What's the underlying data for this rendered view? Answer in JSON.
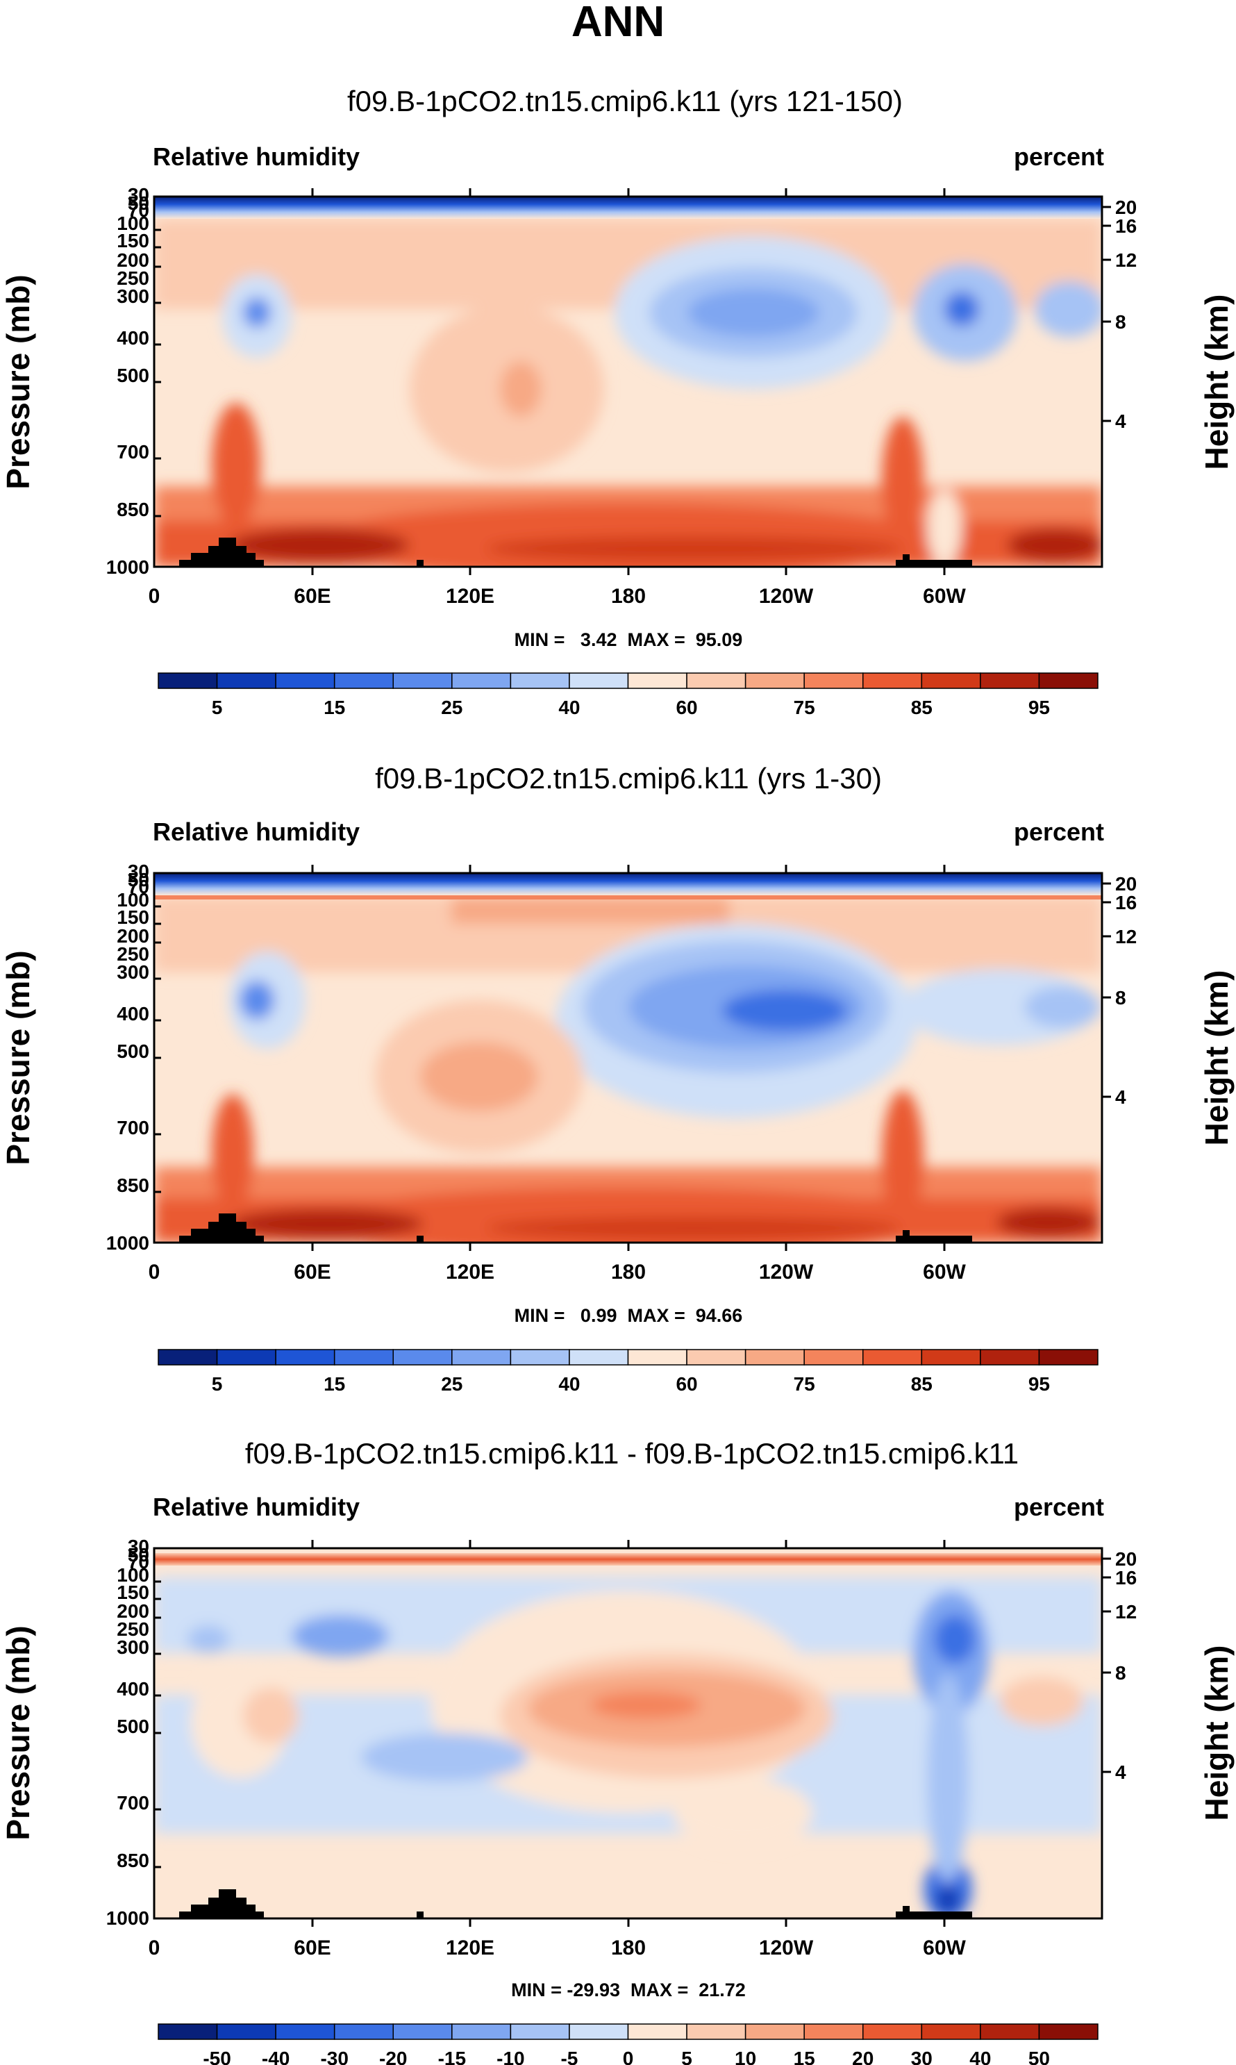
{
  "figure_title": "ANN",
  "chart_data": [
    {
      "type": "heatmap",
      "title": "f09.B-1pCO2.tn15.cmip6.k11 (yrs 121-150)",
      "left_label": "Relative humidity",
      "right_label": "percent",
      "xlabel": "",
      "ylabel": "Pressure (mb)",
      "ylabel_right": "Height (km)",
      "x_ticks": [
        "0",
        "60E",
        "120E",
        "180",
        "120W",
        "60W"
      ],
      "pressure_ticks": [
        "30",
        "50",
        "70",
        "100",
        "150",
        "200",
        "250",
        "300",
        "400",
        "500",
        "700",
        "850",
        "1000"
      ],
      "height_ticks": [
        "20",
        "16",
        "12",
        "8",
        "4"
      ],
      "stats_text": "MIN =   3.42  MAX =  95.09",
      "min": 3.42,
      "max": 95.09,
      "colorbar_levels": [
        5,
        10,
        15,
        20,
        25,
        30,
        40,
        50,
        60,
        70,
        75,
        80,
        85,
        90,
        95
      ],
      "colorbar_labels": [
        "5",
        "15",
        "25",
        "40",
        "60",
        "75",
        "85",
        "95"
      ],
      "colorbar_colors": [
        "#08207a",
        "#0d3ab5",
        "#1e55d6",
        "#3a6fe3",
        "#5a8aec",
        "#7fa6f1",
        "#a6c3f5",
        "#cfe0f8",
        "#fde7d5",
        "#fbcbb0",
        "#f7a985",
        "#f4845c",
        "#ea5a32",
        "#d13a18",
        "#b0220e",
        "#8a0f06"
      ]
    },
    {
      "type": "heatmap",
      "title": "f09.B-1pCO2.tn15.cmip6.k11 (yrs 1-30)",
      "left_label": "Relative humidity",
      "right_label": "percent",
      "xlabel": "",
      "ylabel": "Pressure (mb)",
      "ylabel_right": "Height (km)",
      "x_ticks": [
        "0",
        "60E",
        "120E",
        "180",
        "120W",
        "60W"
      ],
      "pressure_ticks": [
        "30",
        "50",
        "70",
        "100",
        "150",
        "200",
        "250",
        "300",
        "400",
        "500",
        "700",
        "850",
        "1000"
      ],
      "height_ticks": [
        "20",
        "16",
        "12",
        "8",
        "4"
      ],
      "stats_text": "MIN =   0.99  MAX =  94.66",
      "min": 0.99,
      "max": 94.66,
      "colorbar_levels": [
        5,
        10,
        15,
        20,
        25,
        30,
        40,
        50,
        60,
        70,
        75,
        80,
        85,
        90,
        95
      ],
      "colorbar_labels": [
        "5",
        "15",
        "25",
        "40",
        "60",
        "75",
        "85",
        "95"
      ],
      "colorbar_colors": [
        "#08207a",
        "#0d3ab5",
        "#1e55d6",
        "#3a6fe3",
        "#5a8aec",
        "#7fa6f1",
        "#a6c3f5",
        "#cfe0f8",
        "#fde7d5",
        "#fbcbb0",
        "#f7a985",
        "#f4845c",
        "#ea5a32",
        "#d13a18",
        "#b0220e",
        "#8a0f06"
      ]
    },
    {
      "type": "heatmap",
      "title": "f09.B-1pCO2.tn15.cmip6.k11 - f09.B-1pCO2.tn15.cmip6.k11",
      "left_label": "Relative humidity",
      "right_label": "percent",
      "xlabel": "",
      "ylabel": "Pressure (mb)",
      "ylabel_right": "Height (km)",
      "x_ticks": [
        "0",
        "60E",
        "120E",
        "180",
        "120W",
        "60W"
      ],
      "pressure_ticks": [
        "30",
        "50",
        "70",
        "100",
        "150",
        "200",
        "250",
        "300",
        "400",
        "500",
        "700",
        "850",
        "1000"
      ],
      "height_ticks": [
        "20",
        "16",
        "12",
        "8",
        "4"
      ],
      "stats_text": "MIN = -29.93  MAX =  21.72",
      "min": -29.93,
      "max": 21.72,
      "colorbar_levels": [
        -50,
        -40,
        -30,
        -20,
        -15,
        -10,
        -5,
        0,
        5,
        10,
        15,
        20,
        30,
        40,
        50
      ],
      "colorbar_labels": [
        "-50",
        "-40",
        "-30",
        "-20",
        "-15",
        "-10",
        "-5",
        "0",
        "5",
        "10",
        "15",
        "20",
        "30",
        "40",
        "50"
      ],
      "colorbar_colors": [
        "#08207a",
        "#0d3ab5",
        "#1e55d6",
        "#3a6fe3",
        "#5a8aec",
        "#7fa6f1",
        "#a6c3f5",
        "#cfe0f8",
        "#fde7d5",
        "#fbcbb0",
        "#f7a985",
        "#f4845c",
        "#ea5a32",
        "#d13a18",
        "#b0220e",
        "#8a0f06"
      ]
    }
  ]
}
